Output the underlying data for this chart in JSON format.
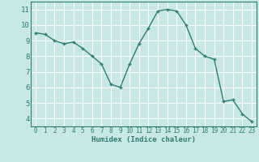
{
  "x": [
    0,
    1,
    2,
    3,
    4,
    5,
    6,
    7,
    8,
    9,
    10,
    11,
    12,
    13,
    14,
    15,
    16,
    17,
    18,
    19,
    20,
    21,
    22,
    23
  ],
  "y": [
    9.5,
    9.4,
    9.0,
    8.8,
    8.9,
    8.5,
    8.0,
    7.5,
    6.2,
    6.0,
    7.5,
    8.8,
    9.8,
    10.9,
    11.0,
    10.9,
    10.0,
    8.5,
    8.0,
    7.8,
    5.1,
    5.2,
    4.3,
    3.8
  ],
  "line_color": "#2e7d72",
  "marker": "+",
  "bg_color": "#c8e8e5",
  "grid_color": "#ffffff",
  "xlabel": "Humidex (Indice chaleur)",
  "ylim": [
    3.5,
    11.5
  ],
  "xlim": [
    -0.5,
    23.5
  ],
  "yticks": [
    4,
    5,
    6,
    7,
    8,
    9,
    10,
    11
  ],
  "xticks": [
    0,
    1,
    2,
    3,
    4,
    5,
    6,
    7,
    8,
    9,
    10,
    11,
    12,
    13,
    14,
    15,
    16,
    17,
    18,
    19,
    20,
    21,
    22,
    23
  ],
  "xlabel_fontsize": 6.5,
  "tick_fontsize": 5.5,
  "ytick_fontsize": 6.5,
  "linewidth": 1.0,
  "markersize": 3,
  "spine_color": "#2e7d72"
}
